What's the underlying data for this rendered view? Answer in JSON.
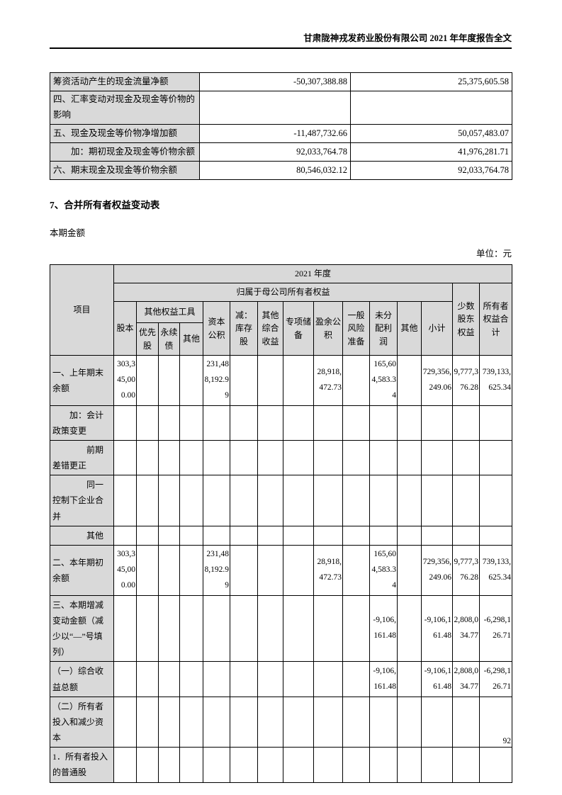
{
  "page": {
    "header_title": "甘肃陇神戎发药业股份有限公司 2021 年年度报告全文",
    "page_number": "92"
  },
  "colors": {
    "shaded_cell": "#d9d9d9",
    "border": "#000000"
  },
  "cash_flow_table": {
    "rows": [
      {
        "label": "筹资活动产生的现金流量净额",
        "current": "-50,307,388.88",
        "prior": "25,375,605.58"
      },
      {
        "label": "四、汇率变动对现金及现金等价物的影响",
        "current": "",
        "prior": ""
      },
      {
        "label": "五、现金及现金等价物净增加额",
        "current": "-11,487,732.66",
        "prior": "50,057,483.07"
      },
      {
        "label": "　　加：期初现金及现金等价物余额",
        "current": "92,033,764.78",
        "prior": "41,976,281.71"
      },
      {
        "label": "六、期末现金及现金等价物余额",
        "current": "80,546,032.12",
        "prior": "92,033,764.78"
      }
    ]
  },
  "section": {
    "heading": "7、合并所有者权益变动表",
    "subheading": "本期金额",
    "unit_label": "单位：元"
  },
  "equity_table": {
    "header": {
      "item": "项目",
      "year": "2021 年度",
      "parent_group": "归属于母公司所有者权益",
      "minority": "少数股东权益",
      "total": "所有者权益合计",
      "share_capital": "股本",
      "other_equity_group": "其他权益工具",
      "preferred": "优先股",
      "perpetual": "永续债",
      "other_equity_other": "其他",
      "capital_reserve": "资本公积",
      "treasury": "减：库存股",
      "oci": "其他综合收益",
      "special_reserve": "专项储备",
      "surplus_reserve": "盈余公积",
      "general_risk": "一般风险准备",
      "retained": "未分配利润",
      "other": "其他",
      "subtotal": "小计"
    },
    "rows": [
      {
        "label": "一、上年期末余额",
        "cells": [
          "303,345,000.00",
          "",
          "",
          "",
          "231,488,192.99",
          "",
          "",
          "",
          "28,918,472.73",
          "",
          "165,604,583.34",
          "",
          "729,356,249.06",
          "9,777,376.28",
          "739,133,625.34"
        ]
      },
      {
        "label": "　　加：会计政策变更",
        "cells": [
          "",
          "",
          "",
          "",
          "",
          "",
          "",
          "",
          "",
          "",
          "",
          "",
          "",
          "",
          ""
        ]
      },
      {
        "label": "　　　　前期差错更正",
        "cells": [
          "",
          "",
          "",
          "",
          "",
          "",
          "",
          "",
          "",
          "",
          "",
          "",
          "",
          "",
          ""
        ]
      },
      {
        "label": "　　　　同一控制下企业合并",
        "cells": [
          "",
          "",
          "",
          "",
          "",
          "",
          "",
          "",
          "",
          "",
          "",
          "",
          "",
          "",
          ""
        ]
      },
      {
        "label": "　　　　其他",
        "cells": [
          "",
          "",
          "",
          "",
          "",
          "",
          "",
          "",
          "",
          "",
          "",
          "",
          "",
          "",
          ""
        ]
      },
      {
        "label": "二、本年期初余额",
        "cells": [
          "303,345,000.00",
          "",
          "",
          "",
          "231,488,192.99",
          "",
          "",
          "",
          "28,918,472.73",
          "",
          "165,604,583.34",
          "",
          "729,356,249.06",
          "9,777,376.28",
          "739,133,625.34"
        ]
      },
      {
        "label": "三、本期增减变动金额（减少以“—”号填列）",
        "cells": [
          "",
          "",
          "",
          "",
          "",
          "",
          "",
          "",
          "",
          "",
          "-9,106,161.48",
          "",
          "-9,106,161.48",
          "2,808,034.77",
          "-6,298,126.71"
        ]
      },
      {
        "label": "（一）综合收益总额",
        "cells": [
          "",
          "",
          "",
          "",
          "",
          "",
          "",
          "",
          "",
          "",
          "-9,106,161.48",
          "",
          "-9,106,161.48",
          "2,808,034.77",
          "-6,298,126.71"
        ]
      },
      {
        "label": "（二）所有者投入和减少资本",
        "cells": [
          "",
          "",
          "",
          "",
          "",
          "",
          "",
          "",
          "",
          "",
          "",
          "",
          "",
          "",
          ""
        ]
      },
      {
        "label": "1．所有者投入的普通股",
        "cells": [
          "",
          "",
          "",
          "",
          "",
          "",
          "",
          "",
          "",
          "",
          "",
          "",
          "",
          "",
          ""
        ]
      }
    ]
  }
}
